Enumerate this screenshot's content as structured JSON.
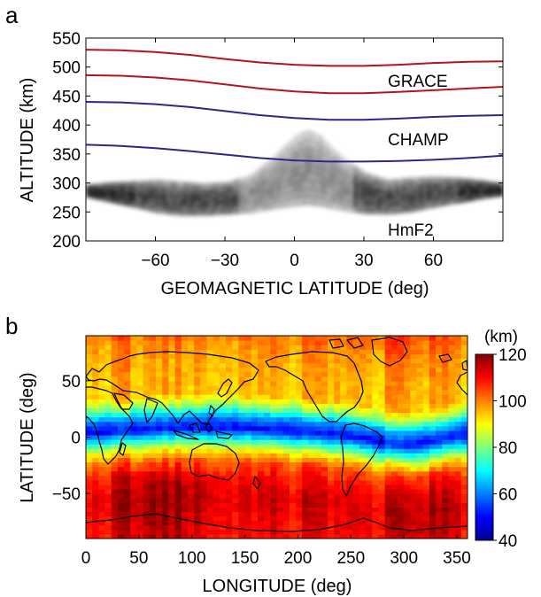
{
  "chart_data": [
    {
      "panel_label": "a",
      "type": "line",
      "xlabel": "GEOMAGNETIC LATITUDE (deg)",
      "ylabel": "ALTITUDE (km)",
      "xlim": [
        -90,
        90
      ],
      "ylim": [
        200,
        550
      ],
      "xticks": [
        "−60",
        "−30",
        "0",
        "30",
        "60"
      ],
      "xtick_values": [
        -60,
        -30,
        0,
        30,
        60
      ],
      "yticks": [
        "200",
        "250",
        "300",
        "350",
        "400",
        "450",
        "500",
        "550"
      ],
      "ytick_values": [
        200,
        250,
        300,
        350,
        400,
        450,
        500,
        550
      ],
      "grid": false,
      "series": [
        {
          "color": "#b2151b",
          "x": [
            -90,
            -75,
            -60,
            -45,
            -30,
            -15,
            0,
            15,
            30,
            45,
            60,
            75,
            90
          ],
          "y": [
            530,
            529,
            526,
            521,
            514,
            508,
            504,
            502,
            502,
            504,
            507,
            509,
            510
          ]
        },
        {
          "color": "#b2151b",
          "x": [
            -90,
            -75,
            -60,
            -45,
            -30,
            -15,
            0,
            15,
            30,
            45,
            60,
            75,
            90
          ],
          "y": [
            486,
            485,
            482,
            477,
            470,
            463,
            458,
            455,
            455,
            457,
            460,
            463,
            466
          ]
        },
        {
          "color": "#29288c",
          "x": [
            -90,
            -75,
            -60,
            -45,
            -30,
            -15,
            0,
            15,
            30,
            45,
            60,
            75,
            90
          ],
          "y": [
            440,
            439,
            436,
            431,
            424,
            417,
            412,
            409,
            409,
            411,
            414,
            416,
            417
          ]
        },
        {
          "color": "#29288c",
          "x": [
            -90,
            -75,
            -60,
            -45,
            -30,
            -15,
            0,
            15,
            30,
            45,
            60,
            75,
            90
          ],
          "y": [
            366,
            364,
            360,
            355,
            349,
            343,
            339,
            337,
            337,
            338,
            340,
            343,
            347
          ]
        }
      ],
      "hmf2_band": {
        "color": "#000000",
        "lat": [
          -90,
          -80,
          -70,
          -60,
          -50,
          -40,
          -30,
          -20,
          -10,
          0,
          5,
          10,
          20,
          30,
          40,
          50,
          60,
          70,
          80,
          90
        ],
        "upper_km": [
          298,
          302,
          304,
          306,
          303,
          300,
          302,
          314,
          345,
          383,
          392,
          384,
          345,
          318,
          306,
          310,
          312,
          310,
          306,
          300
        ],
        "lower_km": [
          275,
          266,
          258,
          248,
          244,
          244,
          246,
          248,
          255,
          260,
          262,
          260,
          252,
          247,
          246,
          250,
          258,
          265,
          272,
          278
        ]
      },
      "annotations": [
        "GRACE",
        "CHAMP",
        "HmF2"
      ]
    },
    {
      "panel_label": "b",
      "type": "heatmap",
      "xlabel": "LONGITUDE (deg)",
      "ylabel": "LATITUDE (deg)",
      "xlim": [
        0,
        360
      ],
      "ylim": [
        -90,
        90
      ],
      "xticks": [
        "0",
        "50",
        "100",
        "150",
        "200",
        "250",
        "300",
        "350"
      ],
      "xtick_values": [
        0,
        50,
        100,
        150,
        200,
        250,
        300,
        350
      ],
      "yticks": [
        "−50",
        "0",
        "50"
      ],
      "ytick_values": [
        -50,
        0,
        50
      ],
      "colorbar": {
        "unit": "(km)",
        "range": [
          40,
          120
        ],
        "ticks": [
          "40",
          "60",
          "80",
          "100",
          "120"
        ],
        "tick_values": [
          40,
          60,
          80,
          100,
          120
        ],
        "colormap": "jet"
      },
      "field_profile": {
        "lat": [
          -90,
          -75,
          -60,
          -45,
          -30,
          -20,
          -10,
          0,
          10,
          20,
          30,
          45,
          60,
          75,
          90
        ],
        "value_km": [
          110,
          112,
          113,
          110,
          104,
          92,
          72,
          50,
          62,
          82,
          95,
          96,
          97,
          99,
          103
        ]
      },
      "overlay": "continent coastlines"
    }
  ]
}
